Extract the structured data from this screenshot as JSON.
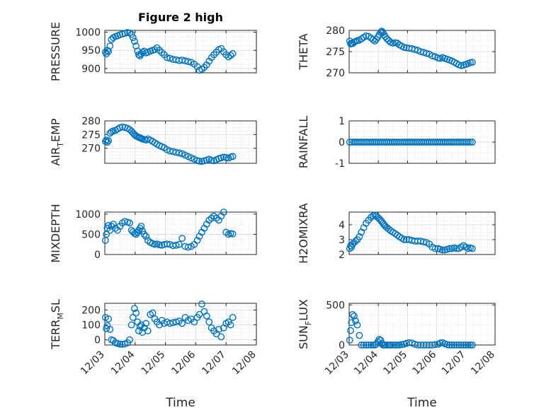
{
  "figure": {
    "title": "Figure 2 high"
  },
  "x_tick_labels": [
    "12/03",
    "12/04",
    "12/05",
    "12/06",
    "12/07",
    "12/08"
  ],
  "xlabel": "Time",
  "colors": {
    "marker": "#0072BD",
    "axis": "#262626",
    "grid": "#d9d9d9",
    "background": "#ffffff"
  },
  "chart_data": [
    {
      "type": "scatter",
      "ylabel": "PRESSURE",
      "ylim": [
        888,
        1005
      ],
      "yticks": [
        900,
        950,
        1000
      ],
      "ytick_labels": [
        "900",
        "950",
        "1000"
      ],
      "grid": true,
      "marker": "circle",
      "x": [
        0.02,
        0.05,
        0.08,
        0.12,
        0.17,
        0.22,
        0.28,
        0.35,
        0.42,
        0.5,
        0.58,
        0.66,
        0.75,
        0.82,
        0.88,
        0.93,
        0.98,
        1.03,
        1.08,
        1.12,
        1.16,
        1.2,
        1.24,
        1.3,
        1.36,
        1.42,
        1.5,
        1.58,
        1.65,
        1.72,
        1.8,
        1.88,
        1.96,
        2.05,
        2.15,
        2.25,
        2.35,
        2.45,
        2.55,
        2.65,
        2.75,
        2.85,
        2.95,
        3.05,
        3.12,
        3.2,
        3.28,
        3.36,
        3.44,
        3.52,
        3.6,
        3.68,
        3.76,
        3.84,
        3.92,
        4.0,
        4.08,
        4.15,
        4.22
      ],
      "y": [
        945,
        940,
        950,
        947,
        962,
        980,
        985,
        988,
        990,
        993,
        995,
        997,
        999,
        998,
        994,
        985,
        975,
        962,
        948,
        938,
        935,
        940,
        945,
        948,
        943,
        945,
        948,
        950,
        952,
        957,
        950,
        944,
        938,
        930,
        928,
        925,
        924,
        922,
        923,
        921,
        919,
        917,
        912,
        905,
        895,
        898,
        903,
        910,
        920,
        930,
        938,
        945,
        952,
        955,
        946,
        938,
        932,
        936,
        941
      ]
    },
    {
      "type": "scatter",
      "ylabel": "THETA",
      "ylim": [
        270,
        280
      ],
      "yticks": [
        270,
        275,
        280
      ],
      "ytick_labels": [
        "270",
        "275",
        "280"
      ],
      "grid": true,
      "marker": "circle",
      "x": [
        0.02,
        0.05,
        0.08,
        0.12,
        0.17,
        0.22,
        0.28,
        0.35,
        0.42,
        0.5,
        0.58,
        0.66,
        0.75,
        0.82,
        0.88,
        0.93,
        0.98,
        1.03,
        1.08,
        1.12,
        1.16,
        1.2,
        1.24,
        1.3,
        1.36,
        1.42,
        1.5,
        1.58,
        1.65,
        1.72,
        1.8,
        1.88,
        1.96,
        2.05,
        2.15,
        2.25,
        2.35,
        2.45,
        2.55,
        2.65,
        2.75,
        2.85,
        2.95,
        3.05,
        3.12,
        3.2,
        3.28,
        3.36,
        3.44,
        3.52,
        3.6,
        3.68,
        3.76,
        3.84,
        3.92,
        4.0,
        4.08,
        4.15,
        4.22
      ],
      "y": [
        277.5,
        276.8,
        277.0,
        276.9,
        277.2,
        277.4,
        277.6,
        277.7,
        278.0,
        278.4,
        278.7,
        278.6,
        278.2,
        277.8,
        277.5,
        277.9,
        278.4,
        279.0,
        279.6,
        279.8,
        279.5,
        279.0,
        278.5,
        278.0,
        277.6,
        277.2,
        277.0,
        277.1,
        277.0,
        276.6,
        276.3,
        276.0,
        275.9,
        275.8,
        275.7,
        275.5,
        275.3,
        275.0,
        274.8,
        274.6,
        274.4,
        274.0,
        273.8,
        273.5,
        273.4,
        273.6,
        273.4,
        273.2,
        273.0,
        272.8,
        272.5,
        272.2,
        271.9,
        271.7,
        271.8,
        272.0,
        272.2,
        272.4,
        272.5
      ]
    },
    {
      "type": "scatter",
      "ylabel": "AIR_TEMP",
      "ylim": [
        264.5,
        280
      ],
      "yticks": [
        270,
        275,
        280
      ],
      "ytick_labels": [
        "270",
        "275",
        "280"
      ],
      "grid": true,
      "marker": "circle",
      "x": [
        0.02,
        0.05,
        0.08,
        0.12,
        0.17,
        0.22,
        0.28,
        0.35,
        0.42,
        0.5,
        0.58,
        0.66,
        0.75,
        0.82,
        0.88,
        0.93,
        0.98,
        1.03,
        1.08,
        1.12,
        1.16,
        1.2,
        1.24,
        1.3,
        1.36,
        1.42,
        1.5,
        1.58,
        1.65,
        1.72,
        1.8,
        1.88,
        1.96,
        2.05,
        2.15,
        2.25,
        2.35,
        2.45,
        2.55,
        2.65,
        2.75,
        2.85,
        2.95,
        3.05,
        3.12,
        3.2,
        3.28,
        3.36,
        3.44,
        3.52,
        3.6,
        3.68,
        3.76,
        3.84,
        3.92,
        4.0,
        4.08,
        4.15,
        4.22
      ],
      "y": [
        272.5,
        273.0,
        272.2,
        272.8,
        275.5,
        276.0,
        276.3,
        276.5,
        277.0,
        277.5,
        277.8,
        277.6,
        277.3,
        276.8,
        276.2,
        275.6,
        275.0,
        274.5,
        274.2,
        274.0,
        273.8,
        273.6,
        273.4,
        273.2,
        273.0,
        273.4,
        273.0,
        272.5,
        272.0,
        271.5,
        271.0,
        270.6,
        270.2,
        269.5,
        269.0,
        268.8,
        268.5,
        268.3,
        268.0,
        267.5,
        267.0,
        266.5,
        266.0,
        265.5,
        265.3,
        265.2,
        265.4,
        265.7,
        266.0,
        265.6,
        265.4,
        265.8,
        266.2,
        266.5,
        266.8,
        266.6,
        266.4,
        266.8,
        267.0
      ]
    },
    {
      "type": "scatter",
      "ylabel": "RAINFALL",
      "ylim": [
        -1,
        1
      ],
      "yticks": [
        -1,
        0,
        1
      ],
      "ytick_labels": [
        "-1",
        "0",
        "1"
      ],
      "grid": true,
      "marker": "circle",
      "x": [
        0.02,
        0.09,
        0.16,
        0.23,
        0.3,
        0.37,
        0.44,
        0.51,
        0.58,
        0.65,
        0.72,
        0.79,
        0.86,
        0.93,
        1.0,
        1.07,
        1.14,
        1.21,
        1.28,
        1.35,
        1.42,
        1.49,
        1.56,
        1.63,
        1.7,
        1.77,
        1.84,
        1.91,
        1.98,
        2.05,
        2.12,
        2.19,
        2.26,
        2.33,
        2.4,
        2.47,
        2.54,
        2.61,
        2.68,
        2.75,
        2.82,
        2.89,
        2.96,
        3.03,
        3.1,
        3.17,
        3.24,
        3.31,
        3.38,
        3.45,
        3.52,
        3.59,
        3.66,
        3.73,
        3.8,
        3.87,
        3.94,
        4.01,
        4.08,
        4.15,
        4.22
      ],
      "y": [
        0,
        0,
        0,
        0,
        0,
        0,
        0,
        0,
        0,
        0,
        0,
        0,
        0,
        0,
        0,
        0,
        0,
        0,
        0,
        0,
        0,
        0,
        0,
        0,
        0,
        0,
        0,
        0,
        0,
        0,
        0,
        0,
        0,
        0,
        0,
        0,
        0,
        0,
        0,
        0,
        0,
        0,
        0,
        0,
        0,
        0,
        0,
        0,
        0,
        0,
        0,
        0,
        0,
        0,
        0,
        0,
        0,
        0,
        0,
        0,
        0
      ]
    },
    {
      "type": "scatter",
      "ylabel": "MIXDEPTH",
      "ylim": [
        0,
        1050
      ],
      "yticks": [
        0,
        500,
        1000
      ],
      "ytick_labels": [
        "0",
        "500",
        "1000"
      ],
      "grid": true,
      "marker": "circle",
      "x": [
        0.02,
        0.05,
        0.08,
        0.12,
        0.17,
        0.22,
        0.28,
        0.35,
        0.42,
        0.5,
        0.58,
        0.66,
        0.75,
        0.82,
        0.88,
        0.93,
        0.98,
        1.03,
        1.08,
        1.12,
        1.16,
        1.2,
        1.24,
        1.3,
        1.36,
        1.42,
        1.5,
        1.58,
        1.65,
        1.72,
        1.8,
        1.88,
        1.96,
        2.05,
        2.15,
        2.25,
        2.35,
        2.45,
        2.55,
        2.65,
        2.75,
        2.85,
        2.95,
        3.05,
        3.12,
        3.2,
        3.28,
        3.36,
        3.44,
        3.52,
        3.6,
        3.68,
        3.76,
        3.84,
        3.92,
        4.0,
        4.08,
        4.15,
        4.22
      ],
      "y": [
        350,
        500,
        650,
        720,
        600,
        700,
        750,
        650,
        600,
        700,
        780,
        820,
        800,
        780,
        600,
        560,
        520,
        500,
        550,
        600,
        650,
        700,
        580,
        500,
        450,
        350,
        300,
        270,
        250,
        260,
        240,
        230,
        250,
        260,
        250,
        220,
        230,
        250,
        400,
        200,
        180,
        200,
        250,
        350,
        450,
        550,
        650,
        750,
        850,
        900,
        950,
        900,
        850,
        950,
        1050,
        550,
        500,
        520,
        510
      ]
    },
    {
      "type": "scatter",
      "ylabel": "H2OMIXRA",
      "ylim": [
        2,
        4.85
      ],
      "yticks": [
        2,
        3,
        4
      ],
      "ytick_labels": [
        "2",
        "3",
        "4"
      ],
      "grid": true,
      "marker": "circle",
      "x": [
        0.02,
        0.05,
        0.08,
        0.12,
        0.17,
        0.22,
        0.28,
        0.35,
        0.42,
        0.5,
        0.58,
        0.66,
        0.75,
        0.82,
        0.88,
        0.93,
        0.98,
        1.03,
        1.08,
        1.12,
        1.16,
        1.2,
        1.24,
        1.3,
        1.36,
        1.42,
        1.5,
        1.58,
        1.65,
        1.72,
        1.8,
        1.88,
        1.96,
        2.05,
        2.15,
        2.25,
        2.35,
        2.45,
        2.55,
        2.65,
        2.75,
        2.85,
        2.95,
        3.05,
        3.12,
        3.2,
        3.28,
        3.36,
        3.44,
        3.52,
        3.6,
        3.68,
        3.76,
        3.84,
        3.92,
        4.0,
        4.08,
        4.15,
        4.22
      ],
      "y": [
        2.4,
        2.6,
        2.5,
        2.7,
        2.8,
        2.9,
        3.0,
        3.2,
        3.5,
        3.8,
        4.1,
        4.3,
        4.5,
        4.6,
        4.65,
        4.6,
        4.5,
        4.4,
        4.3,
        4.2,
        4.1,
        4.0,
        3.9,
        3.8,
        3.7,
        3.6,
        3.5,
        3.4,
        3.3,
        3.2,
        3.1,
        3.0,
        3.0,
        3.0,
        2.95,
        2.9,
        2.9,
        2.9,
        2.85,
        2.8,
        2.7,
        2.5,
        2.4,
        2.4,
        2.35,
        2.3,
        2.3,
        2.35,
        2.4,
        2.4,
        2.45,
        2.4,
        2.4,
        2.5,
        2.6,
        2.5,
        2.4,
        2.45,
        2.4
      ]
    },
    {
      "type": "scatter",
      "ylabel": "TERR_MSL",
      "ylim": [
        -35,
        245
      ],
      "yticks": [
        0,
        100,
        200
      ],
      "ytick_labels": [
        "0",
        "100",
        "200"
      ],
      "grid": true,
      "marker": "circle",
      "x": [
        0.02,
        0.05,
        0.08,
        0.12,
        0.17,
        0.22,
        0.28,
        0.35,
        0.42,
        0.5,
        0.58,
        0.66,
        0.75,
        0.82,
        0.88,
        0.93,
        0.98,
        1.03,
        1.08,
        1.12,
        1.16,
        1.2,
        1.24,
        1.3,
        1.36,
        1.42,
        1.5,
        1.58,
        1.65,
        1.72,
        1.8,
        1.88,
        1.96,
        2.05,
        2.15,
        2.25,
        2.35,
        2.45,
        2.55,
        2.65,
        2.75,
        2.85,
        2.95,
        3.05,
        3.12,
        3.2,
        3.28,
        3.36,
        3.44,
        3.52,
        3.6,
        3.68,
        3.76,
        3.84,
        3.92,
        4.0,
        4.08,
        4.15,
        4.22
      ],
      "y": [
        150,
        75,
        95,
        140,
        70,
        0,
        -5,
        -20,
        -25,
        -30,
        -30,
        -28,
        -20,
        0,
        100,
        150,
        210,
        180,
        120,
        60,
        90,
        100,
        50,
        80,
        110,
        60,
        170,
        180,
        140,
        120,
        100,
        130,
        110,
        120,
        110,
        115,
        120,
        125,
        110,
        150,
        130,
        140,
        120,
        150,
        170,
        240,
        190,
        160,
        120,
        80,
        60,
        40,
        70,
        20,
        80,
        110,
        120,
        100,
        150
      ]
    },
    {
      "type": "scatter",
      "ylabel": "SUN_FLUX",
      "ylim": [
        0,
        520
      ],
      "yticks": [
        0,
        500
      ],
      "ytick_labels": [
        "0",
        "500"
      ],
      "grid": true,
      "marker": "circle",
      "x": [
        0.02,
        0.05,
        0.08,
        0.12,
        0.17,
        0.22,
        0.28,
        0.35,
        0.42,
        0.5,
        0.58,
        0.66,
        0.75,
        0.82,
        0.88,
        0.93,
        0.98,
        1.03,
        1.08,
        1.12,
        1.16,
        1.2,
        1.24,
        1.3,
        1.36,
        1.42,
        1.5,
        1.58,
        1.65,
        1.72,
        1.8,
        1.88,
        1.96,
        2.05,
        2.15,
        2.25,
        2.35,
        2.45,
        2.55,
        2.65,
        2.75,
        2.85,
        2.95,
        3.05,
        3.12,
        3.2,
        3.28,
        3.36,
        3.44,
        3.52,
        3.6,
        3.68,
        3.76,
        3.84,
        3.92,
        4.0,
        4.08,
        4.15,
        4.22
      ],
      "y": [
        60,
        180,
        280,
        380,
        360,
        300,
        250,
        120,
        0,
        0,
        0,
        0,
        0,
        0,
        0,
        10,
        40,
        70,
        60,
        20,
        0,
        0,
        0,
        0,
        0,
        0,
        0,
        0,
        0,
        0,
        5,
        10,
        20,
        30,
        25,
        10,
        0,
        0,
        0,
        0,
        0,
        0,
        5,
        10,
        25,
        30,
        15,
        5,
        0,
        0,
        0,
        0,
        0,
        0,
        0,
        0,
        0,
        0,
        0
      ]
    }
  ]
}
